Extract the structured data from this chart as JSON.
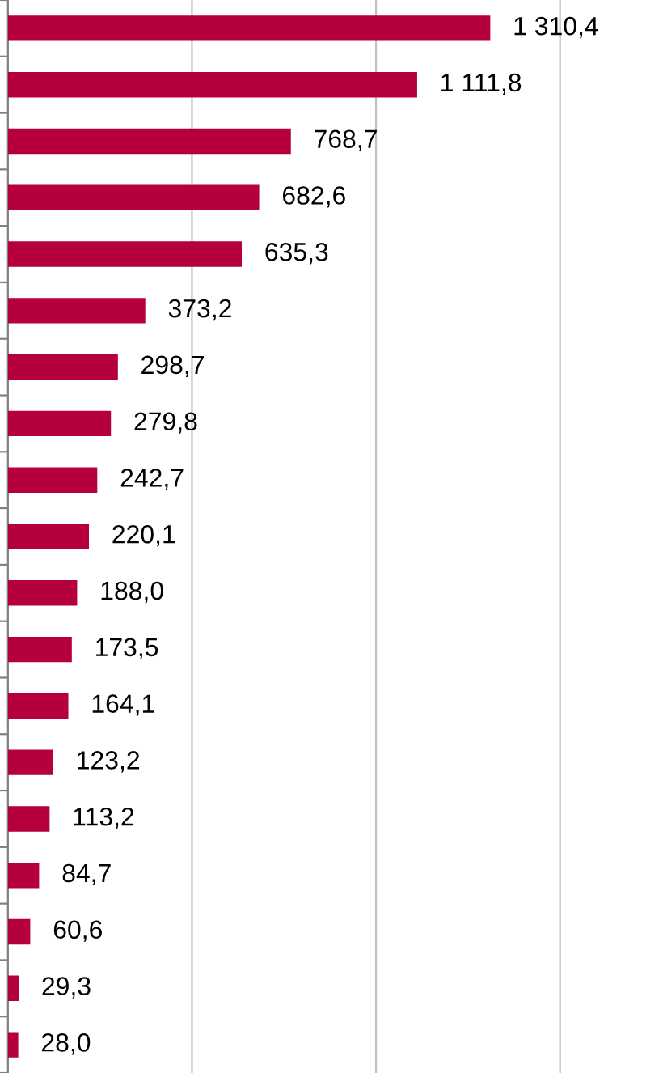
{
  "chart_data": {
    "type": "bar",
    "orientation": "horizontal",
    "categories": [
      null,
      null,
      null,
      null,
      null,
      null,
      null,
      null,
      null,
      null,
      null,
      null,
      null,
      null,
      null,
      null,
      null,
      null,
      null
    ],
    "values": [
      1310.4,
      1111.8,
      768.7,
      682.6,
      635.3,
      373.2,
      298.7,
      279.8,
      242.7,
      220.1,
      188.0,
      173.5,
      164.1,
      123.2,
      113.2,
      84.7,
      60.6,
      29.3,
      28.0
    ],
    "value_labels": [
      "1 310,4",
      "1 111,8",
      "768,7",
      "682,6",
      "635,3",
      "373,2",
      "298,7",
      "279,8",
      "242,7",
      "220,1",
      "188,0",
      "173,5",
      "164,1",
      "123,2",
      "113,2",
      "84,7",
      "60,6",
      "29,3",
      "28,0"
    ],
    "color": "#b5003c",
    "ref_lines": [
      {
        "axis": "x",
        "value": 500,
        "color": "#c0c0c0"
      },
      {
        "axis": "x",
        "value": 1000,
        "color": "#c0c0c0"
      },
      {
        "axis": "x",
        "value": 1500,
        "color": "#c0c0c0"
      }
    ]
  }
}
